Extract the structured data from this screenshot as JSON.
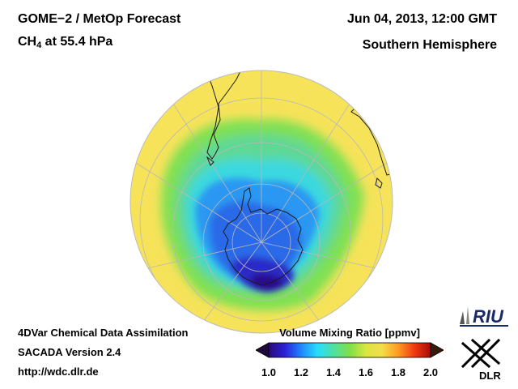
{
  "header": {
    "instrument": "GOME−2 / MetOp Forecast",
    "species_main": "CH",
    "species_sub": "4",
    "level": " at 55.4 hPa",
    "datetime": "Jun 04, 2013, 12:00 GMT",
    "region": "Southern Hemisphere"
  },
  "footer": {
    "line1": "4DVar Chemical Data Assimilation",
    "line2": "SACADA Version 2.4",
    "line3": "http://wdc.dlr.de"
  },
  "colorbar": {
    "title": "Volume Mixing Ratio [ppmv]",
    "ticks": [
      {
        "label": "1.0",
        "value": 1.0
      },
      {
        "label": "1.2",
        "value": 1.2
      },
      {
        "label": "1.4",
        "value": 1.4
      },
      {
        "label": "1.6",
        "value": 1.6
      },
      {
        "label": "1.8",
        "value": 1.8
      },
      {
        "label": "2.0",
        "value": 2.0
      }
    ],
    "min": 1.0,
    "max": 2.0,
    "colors": [
      "#2b0a7a",
      "#2a20d8",
      "#1f86ff",
      "#27dcff",
      "#4fe0a0",
      "#7fe048",
      "#d8e640",
      "#f5dc4a",
      "#ff9a22",
      "#f03a10",
      "#a80a0a"
    ]
  },
  "logos": {
    "riu": "RIU",
    "dlr": "DLR"
  },
  "map_colors": {
    "background": "#f6e35a",
    "green_band": "#6ee07a",
    "cyan_ring": "#3fdcd8",
    "blue_vortex": "#2f8cf0",
    "deep_core": "#2a1ea8",
    "coast": "#1a1a1a"
  }
}
